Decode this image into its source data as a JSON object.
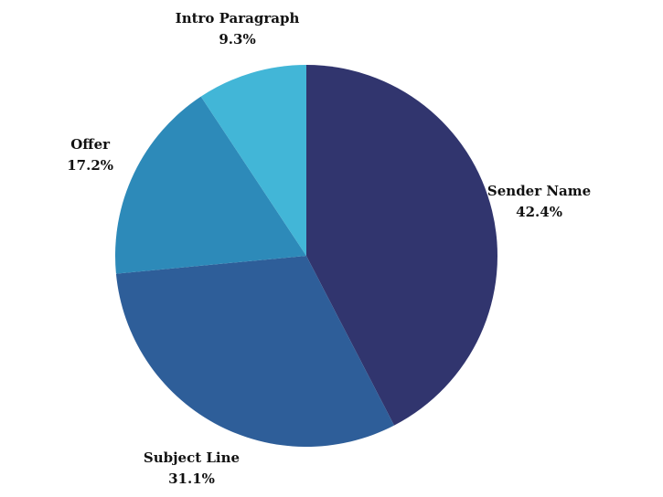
{
  "chart_data": {
    "type": "pie",
    "start_angle_deg": 0,
    "direction": "clockwise",
    "slices": [
      {
        "label": "Sender Name",
        "value": 42.4,
        "value_label": "42.4%",
        "color": "#31356e"
      },
      {
        "label": "Subject Line",
        "value": 31.1,
        "value_label": "31.1%",
        "color": "#2e5e99"
      },
      {
        "label": "Offer",
        "value": 17.2,
        "value_label": "17.2%",
        "color": "#2d8ab9"
      },
      {
        "label": "Intro Paragraph",
        "value": 9.3,
        "value_label": "9.3%",
        "color": "#42b6d7"
      }
    ]
  }
}
